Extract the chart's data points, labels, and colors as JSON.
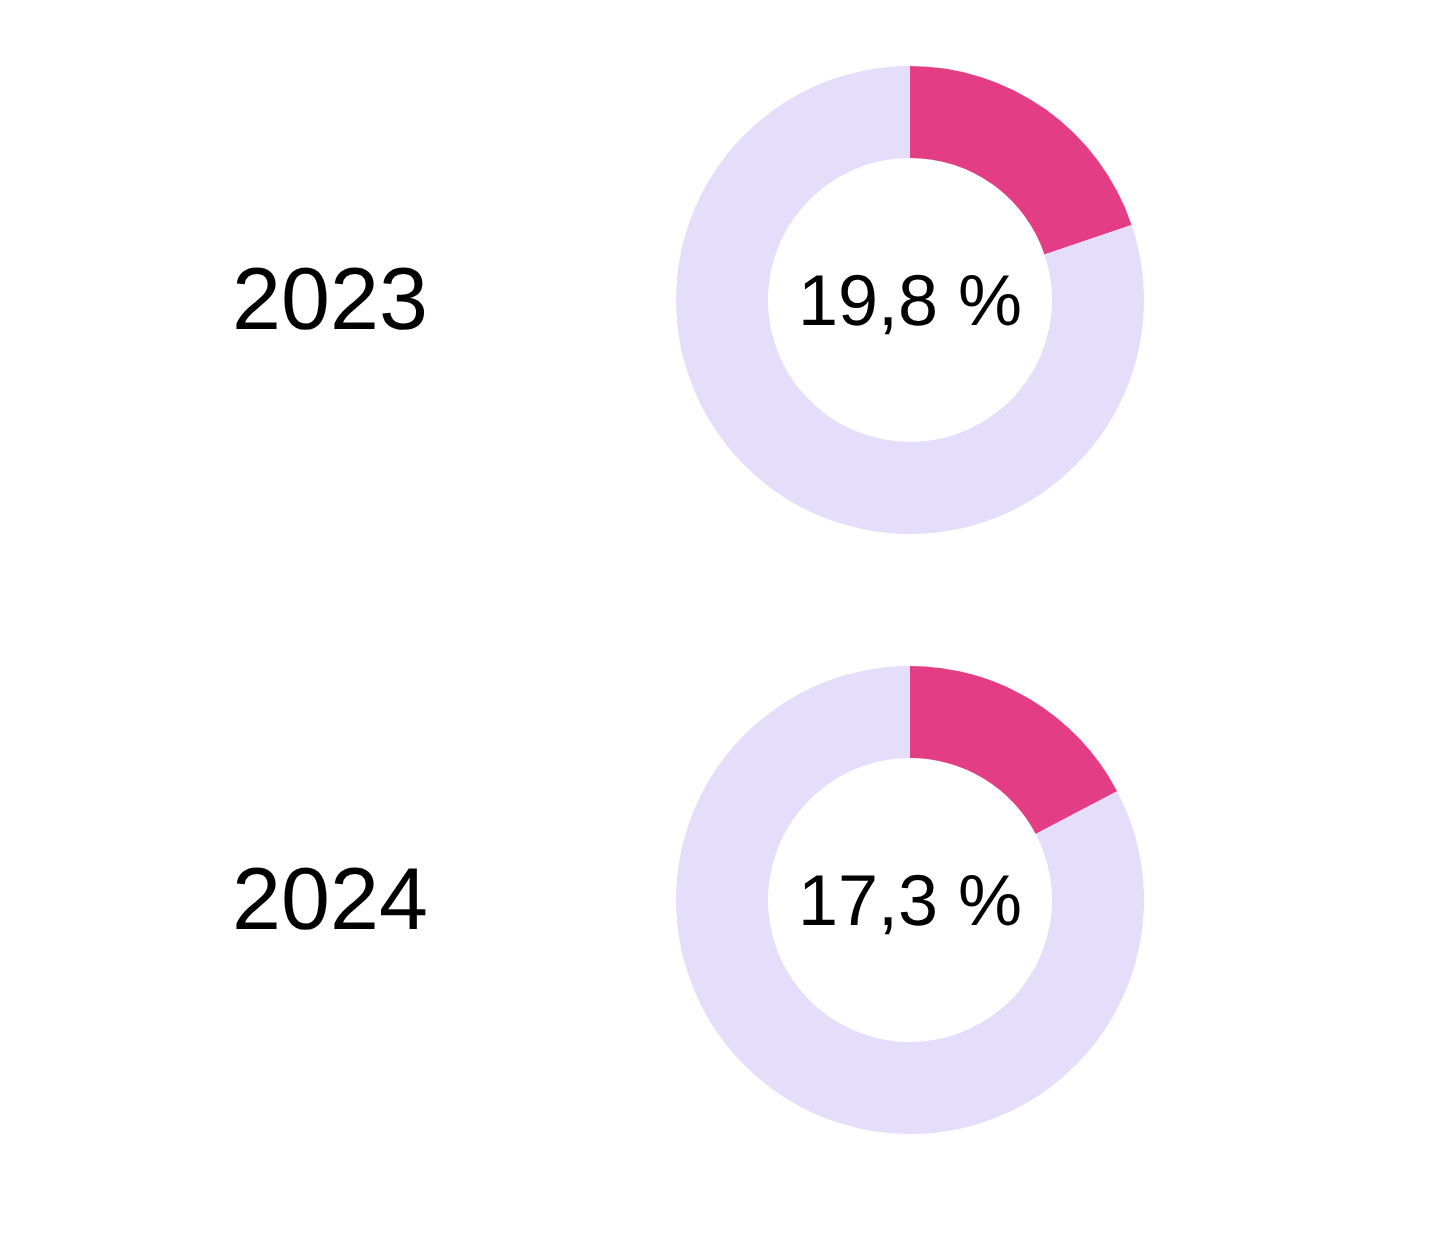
{
  "chart_data": [
    {
      "type": "donut",
      "title": "2023",
      "categories": [
        null,
        null
      ],
      "values": [
        19.8,
        80.2
      ],
      "colors": [
        "#e23d85",
        "#e4defa"
      ],
      "annotations": [
        "19,8 %"
      ]
    },
    {
      "type": "donut",
      "title": "2024",
      "categories": [
        null,
        null
      ],
      "values": [
        17.3,
        82.7
      ],
      "colors": [
        "#e23d85",
        "#e4defa"
      ],
      "annotations": [
        "17,3 %"
      ]
    }
  ]
}
